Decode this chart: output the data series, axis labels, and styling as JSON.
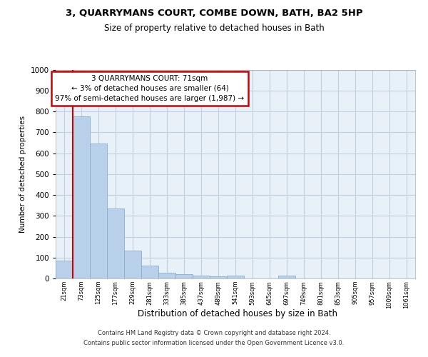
{
  "title_main": "3, QUARRYMANS COURT, COMBE DOWN, BATH, BA2 5HP",
  "title_sub": "Size of property relative to detached houses in Bath",
  "xlabel": "Distribution of detached houses by size in Bath",
  "ylabel": "Number of detached properties",
  "bar_labels": [
    "21sqm",
    "73sqm",
    "125sqm",
    "177sqm",
    "229sqm",
    "281sqm",
    "333sqm",
    "385sqm",
    "437sqm",
    "489sqm",
    "541sqm",
    "593sqm",
    "645sqm",
    "697sqm",
    "749sqm",
    "801sqm",
    "853sqm",
    "905sqm",
    "957sqm",
    "1009sqm",
    "1061sqm"
  ],
  "bar_heights": [
    85,
    775,
    645,
    335,
    135,
    62,
    27,
    22,
    15,
    10,
    12,
    0,
    0,
    12,
    0,
    0,
    0,
    0,
    0,
    0,
    0
  ],
  "bar_color": "#b8d0ea",
  "bar_edge_color": "#8ab0d0",
  "vline_color": "#cc0000",
  "ylim_max": 1000,
  "annotation_line1": "3 QUARRYMANS COURT: 71sqm",
  "annotation_line2": "← 3% of detached houses are smaller (64)",
  "annotation_line3": "97% of semi-detached houses are larger (1,987) →",
  "annotation_border_color": "#cc0000",
  "grid_color": "#c0d0e0",
  "plot_bg_color": "#e8f0f8",
  "footer_line1": "Contains HM Land Registry data © Crown copyright and database right 2024.",
  "footer_line2": "Contains public sector information licensed under the Open Government Licence v3.0."
}
